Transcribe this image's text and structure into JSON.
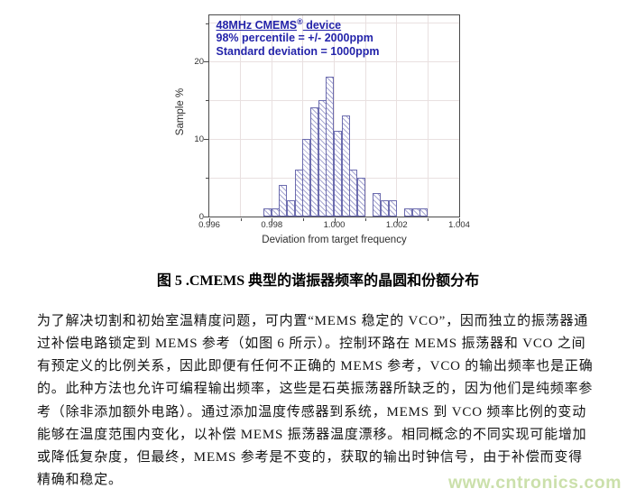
{
  "chart": {
    "annotation": {
      "line1_main": "48MHz CMEMS",
      "line1_sup": "®",
      "line1_tail": " device",
      "line2": "98% percentile = +/- 2000ppm",
      "line3": "Standard deviation = 1000ppm"
    }
  },
  "chart_data": {
    "type": "bar",
    "subtype": "histogram",
    "title": "48MHz CMEMS® device",
    "annotation_lines": [
      "48MHz CMEMS® device",
      "98% percentile = +/- 2000ppm",
      "Standard deviation = 1000ppm"
    ],
    "xlabel": "Deviation from target frequency",
    "ylabel": "Sample %",
    "xlim": [
      0.996,
      1.004
    ],
    "ylim": [
      0,
      26
    ],
    "grid": true,
    "legend": "none",
    "bin_width": 0.00025,
    "x_major_tick_labels": [
      "0.996",
      "0.998",
      "1.000",
      "1.002",
      "1.004"
    ],
    "x_major_ticks": [
      0.996,
      0.998,
      1.0,
      1.002,
      1.004
    ],
    "x_minor_ticks": [
      0.997,
      0.999,
      1.001,
      1.003
    ],
    "y_major_ticks": [
      0,
      10,
      20
    ],
    "y_minor_ticks": [
      5,
      15,
      25
    ],
    "grid_x_positions": [
      0.997,
      0.998,
      0.999,
      1.0,
      1.001,
      1.002,
      1.003
    ],
    "grid_y_positions": [
      5,
      10,
      15,
      20,
      25
    ],
    "bins": [
      {
        "x": 0.99775,
        "h": 1
      },
      {
        "x": 0.998,
        "h": 1
      },
      {
        "x": 0.99825,
        "h": 4
      },
      {
        "x": 0.9985,
        "h": 2
      },
      {
        "x": 0.99875,
        "h": 6
      },
      {
        "x": 0.999,
        "h": 10
      },
      {
        "x": 0.99925,
        "h": 14
      },
      {
        "x": 0.9995,
        "h": 15
      },
      {
        "x": 0.99975,
        "h": 18
      },
      {
        "x": 1.0,
        "h": 11
      },
      {
        "x": 1.00025,
        "h": 13
      },
      {
        "x": 1.0005,
        "h": 6
      },
      {
        "x": 1.00075,
        "h": 5
      },
      {
        "x": 1.001,
        "h": 0
      },
      {
        "x": 1.00125,
        "h": 3
      },
      {
        "x": 1.0015,
        "h": 2
      },
      {
        "x": 1.00175,
        "h": 2
      },
      {
        "x": 1.002,
        "h": 0
      },
      {
        "x": 1.00225,
        "h": 1
      },
      {
        "x": 1.0025,
        "h": 1
      },
      {
        "x": 1.00275,
        "h": 1
      }
    ]
  },
  "caption": "图 5 .CMEMS 典型的谐振器频率的晶圆和份额分布",
  "body": {
    "lines": [
      "为了解决切割和初始室温精度问题，可内置“MEMS 稳定的 VCO”，因而独立的振荡器通",
      "过补偿电路锁定到 MEMS 参考（如图 6 所示）。控制环路在 MEMS 振荡器和 VCO 之间",
      "有预定义的比例关系，因此即便有任何不正确的 MEMS 参考，VCO 的输出频率也是正确",
      "的。此种方法也允许可编程输出频率，这些是石英振荡器所缺乏的，因为他们是纯频率参",
      "考（除非添加额外电路）。通过添加温度传感器到系统，MEMS 到 VCO 频率比例的变动",
      "能够在温度范围内变化，以补偿 MEMS 振荡器温度漂移。相同概念的不同实现可能增加",
      "或降低复杂度，但最终，MEMS 参考是不变的，获取的输出时钟信号，由于补偿而变得",
      "精确和稳定。"
    ]
  },
  "watermark": {
    "text": "www.cntronics.com"
  },
  "colors": {
    "annotation_text": "#2424aa",
    "bar_edge": "#6c6cae",
    "bar_hatch": "#8e8ec8",
    "axis": "#4a4a4a",
    "grid": "#e9e0e0",
    "tick_label": "#2e2e2e",
    "body_text": "#141414",
    "watermark": "#cbe0ab"
  }
}
